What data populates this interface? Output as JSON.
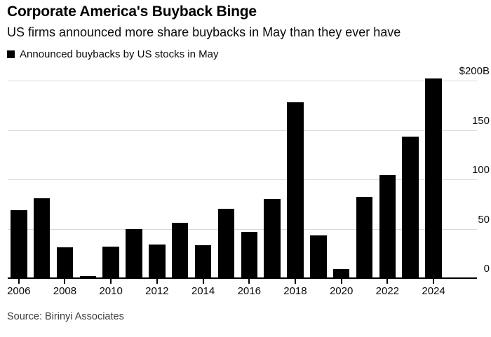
{
  "header": {
    "title": "Corporate America's Buyback Binge",
    "subtitle": "US firms announced more share buybacks in May than they ever have"
  },
  "legend": {
    "label": "Announced buybacks by US stocks in May",
    "swatch_color": "#000000"
  },
  "source": "Source: Birinyi Associates",
  "colors": {
    "bar": "#000000",
    "gridline": "#d9d9d9",
    "axis": "#000000",
    "background": "#ffffff"
  },
  "chart_data": {
    "type": "bar",
    "title": "Announced buybacks by US stocks in May",
    "unit": "billions of US dollars",
    "categories": [
      2006,
      2007,
      2008,
      2009,
      2010,
      2011,
      2012,
      2013,
      2014,
      2015,
      2016,
      2017,
      2018,
      2019,
      2020,
      2021,
      2022,
      2023,
      2024
    ],
    "values": [
      69,
      81,
      31,
      2,
      32,
      50,
      34,
      56,
      33,
      70,
      47,
      80,
      178,
      43,
      9,
      82,
      104,
      143,
      202
    ],
    "series_name": "Announced buybacks by US stocks in May",
    "xlabel": "",
    "ylabel": "$B",
    "ylim": [
      0,
      200
    ],
    "grid": true,
    "legend_position": "top-left",
    "axis_side": "right",
    "y_ticks": [
      {
        "value": 0,
        "label": "0"
      },
      {
        "value": 50,
        "label": "50"
      },
      {
        "value": 100,
        "label": "100"
      },
      {
        "value": 150,
        "label": "150"
      },
      {
        "value": 200,
        "label": "$200B"
      }
    ],
    "x_tick_years": [
      2006,
      2008,
      2010,
      2012,
      2014,
      2016,
      2018,
      2020,
      2022,
      2024
    ]
  }
}
